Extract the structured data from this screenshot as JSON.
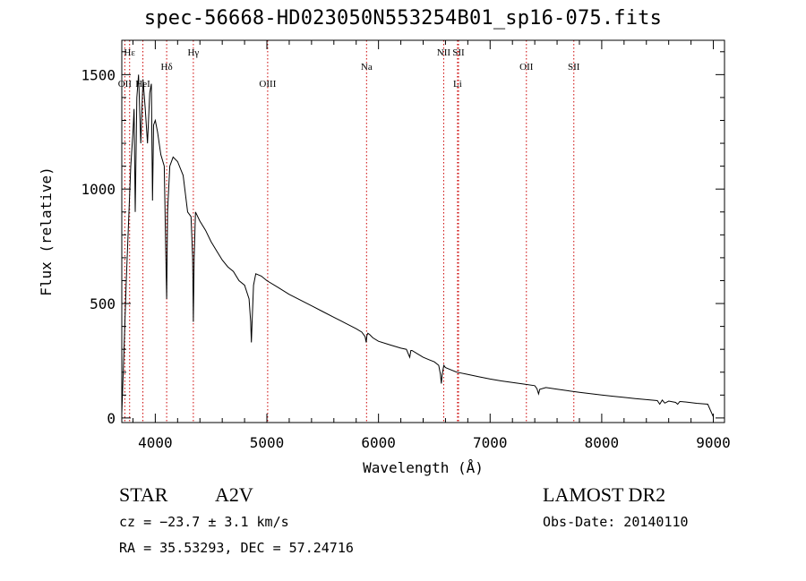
{
  "title": "spec-56668-HD023050N553254B01_sp16-075.fits",
  "info": {
    "object_class": "STAR",
    "subclass": "A2V",
    "survey": "LAMOST DR2",
    "cz": "cz = −23.7 ± 3.1 km/s",
    "obs_date": "Obs-Date: 20140110",
    "radec": "RA =  35.53293, DEC =  57.24716"
  },
  "colors": {
    "axes": "#000000",
    "spectrum": "#000000",
    "line_markers": "#cc0000"
  },
  "chart_data": {
    "type": "line",
    "title": "spec-56668-HD023050N553254B01_sp16-075.fits",
    "xlabel": "Wavelength (Å)",
    "ylabel": "Flux (relative)",
    "xlim": [
      3700,
      9100
    ],
    "ylim": [
      -20,
      1650
    ],
    "x_ticks": [
      4000,
      5000,
      6000,
      7000,
      8000,
      9000
    ],
    "y_ticks": [
      0,
      500,
      1000,
      1500
    ],
    "grid": false,
    "series": [
      {
        "x": [
          3700,
          3720,
          3740,
          3760,
          3780,
          3800,
          3810,
          3820,
          3835,
          3850,
          3870,
          3890,
          3910,
          3930,
          3950,
          3965,
          3975,
          3985,
          4000,
          4020,
          4050,
          4080,
          4095,
          4102,
          4110,
          4130,
          4160,
          4200,
          4250,
          4290,
          4320,
          4335,
          4341,
          4348,
          4360,
          4400,
          4450,
          4500,
          4550,
          4600,
          4650,
          4700,
          4750,
          4800,
          4840,
          4855,
          4861,
          4868,
          4880,
          4900,
          4950,
          5000,
          5100,
          5200,
          5300,
          5400,
          5500,
          5600,
          5700,
          5800,
          5850,
          5880,
          5890,
          5896,
          5905,
          5920,
          5950,
          6000,
          6100,
          6200,
          6250,
          6280,
          6290,
          6300,
          6350,
          6400,
          6450,
          6500,
          6540,
          6555,
          6563,
          6570,
          6585,
          6600,
          6650,
          6700,
          6800,
          6900,
          7000,
          7100,
          7200,
          7300,
          7400,
          7420,
          7434,
          7445,
          7500,
          7600,
          7700,
          7800,
          7900,
          8000,
          8100,
          8200,
          8300,
          8400,
          8498,
          8520,
          8542,
          8565,
          8600,
          8662,
          8680,
          8700,
          8750,
          8800,
          8850,
          8900,
          8950,
          9000
        ],
        "values": [
          20,
          300,
          600,
          850,
          1100,
          1250,
          1350,
          900,
          1400,
          1500,
          1200,
          1480,
          1350,
          1200,
          1420,
          1460,
          950,
          1280,
          1300,
          1250,
          1150,
          1100,
          700,
          520,
          900,
          1100,
          1140,
          1120,
          1060,
          900,
          880,
          700,
          420,
          700,
          900,
          860,
          820,
          770,
          730,
          690,
          660,
          640,
          600,
          580,
          520,
          420,
          330,
          430,
          580,
          630,
          620,
          600,
          570,
          540,
          515,
          490,
          465,
          440,
          415,
          390,
          375,
          355,
          330,
          360,
          370,
          365,
          350,
          335,
          320,
          305,
          300,
          265,
          295,
          295,
          280,
          265,
          255,
          245,
          230,
          190,
          150,
          190,
          230,
          220,
          210,
          200,
          190,
          180,
          170,
          162,
          155,
          148,
          141,
          128,
          105,
          125,
          133,
          126,
          119,
          112,
          106,
          100,
          95,
          90,
          85,
          80,
          76,
          60,
          78,
          65,
          74,
          68,
          60,
          72,
          70,
          67,
          64,
          62,
          60,
          5
        ]
      }
    ],
    "line_markers": [
      {
        "label": "Hε",
        "x": 3770,
        "row": 1
      },
      {
        "label": "OII",
        "x": 3727,
        "row": 3
      },
      {
        "label": "HeI",
        "x": 3889,
        "row": 3
      },
      {
        "label": "Hδ",
        "x": 4102,
        "row": 2
      },
      {
        "label": "Hγ",
        "x": 4341,
        "row": 1
      },
      {
        "label": "OIII",
        "x": 5007,
        "row": 3
      },
      {
        "label": "Na",
        "x": 5893,
        "row": 2
      },
      {
        "label": "NII",
        "x": 6584,
        "row": 1
      },
      {
        "label": "SII",
        "x": 6717,
        "row": 1
      },
      {
        "label": "Li",
        "x": 6708,
        "row": 3
      },
      {
        "label": "OII",
        "x": 7325,
        "row": 2
      },
      {
        "label": "SII",
        "x": 7750,
        "row": 2
      }
    ]
  }
}
